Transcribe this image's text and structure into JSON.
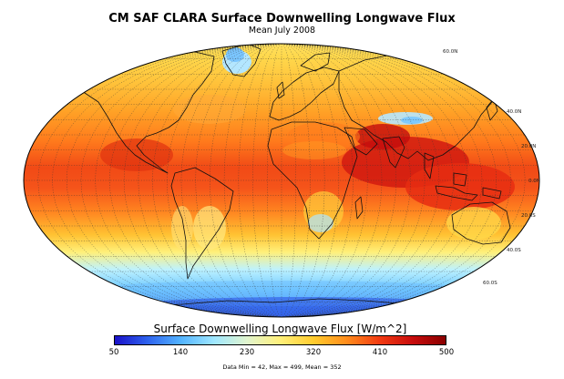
{
  "title": "CM SAF CLARA Surface Downwelling Longwave Flux",
  "subtitle": "Mean July 2008",
  "colorbar": {
    "label": "Surface Downwelling Longwave Flux [W/m^2]",
    "min": 50,
    "max": 500,
    "ticks": [
      "50",
      "140",
      "230",
      "320",
      "410",
      "500"
    ],
    "colors": [
      "#1a10c8",
      "#2e63ee",
      "#53b4ff",
      "#9fe7ff",
      "#e1f5ce",
      "#fff07a",
      "#ffcc2e",
      "#ff8d1c",
      "#f23b12",
      "#c80d0d",
      "#8a0000"
    ]
  },
  "stats_text": "Data Min = 42, Max = 499, Mean = 352",
  "lat_labels": [
    "60.0N",
    "40.0N",
    "20.0N",
    "0.0N",
    "20.0S",
    "40.0S",
    "60.0S"
  ],
  "map": {
    "projection": "robinson",
    "graticule_step_deg": 10,
    "coastline_color": "#111111"
  }
}
